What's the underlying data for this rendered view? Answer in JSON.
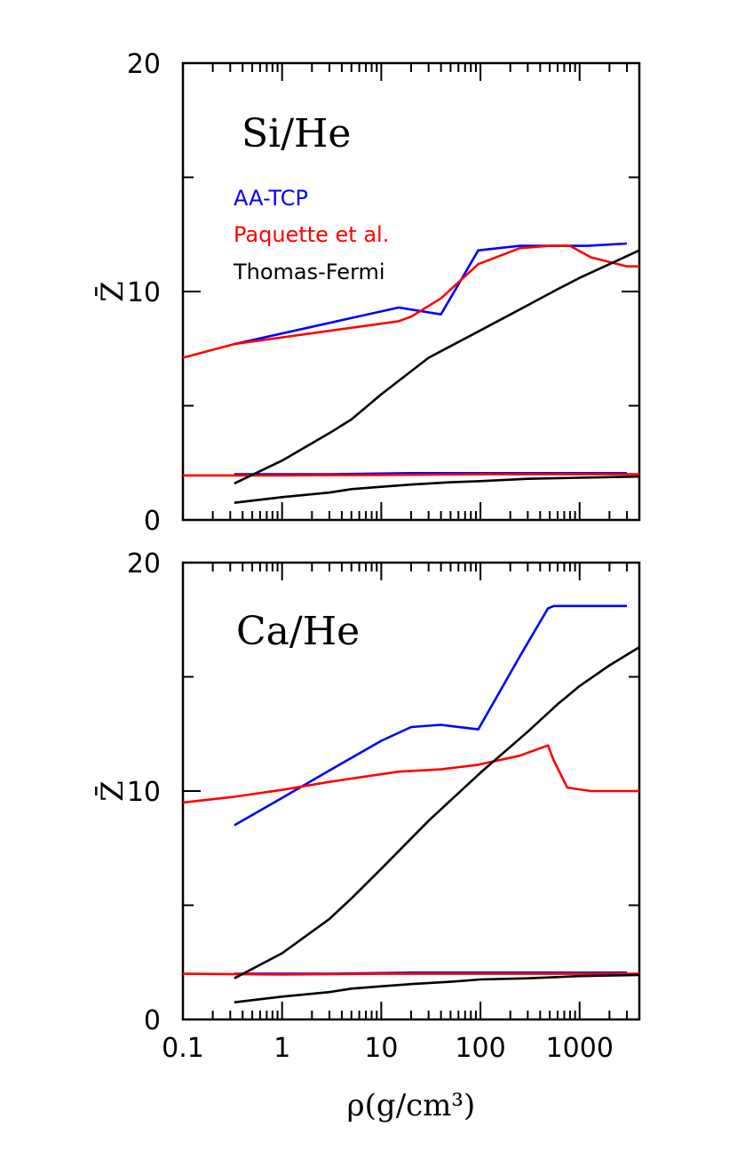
{
  "colors": {
    "AA-TCP": "#0000ff",
    "Paquette et al.": "#ff0000",
    "Thomas-Fermi": "#000000"
  },
  "chart_data": [
    {
      "type": "line",
      "title": "Si/He",
      "xlabel": "",
      "ylabel": "Z̄",
      "xscale": "log",
      "xlim": [
        0.1,
        4000
      ],
      "ylim": [
        0,
        20
      ],
      "x_ticks": [
        0.1,
        1,
        10,
        100,
        1000
      ],
      "x_tick_labels": [
        "0.1",
        "1",
        "10",
        "100",
        "1000"
      ],
      "x_tick_labels_visible": false,
      "y_ticks": [
        0,
        10,
        20
      ],
      "y_tick_labels": [
        "0",
        "10",
        "20"
      ],
      "legend": {
        "position": "upper-left",
        "entries": [
          "AA-TCP",
          "Paquette et al.",
          "Thomas-Fermi"
        ]
      },
      "series": [
        {
          "name": "AA-TCP",
          "x": [
            0.33,
            15,
            40,
            95,
            250,
            500,
            1200,
            3000
          ],
          "y": [
            7.7,
            9.3,
            9.0,
            11.8,
            12.0,
            12.0,
            12.0,
            12.1
          ]
        },
        {
          "name": "AA-TCP",
          "x": [
            0.33,
            3,
            20,
            100,
            3000
          ],
          "y": [
            2.0,
            2.0,
            2.05,
            2.05,
            2.05
          ]
        },
        {
          "name": "Paquette et al.",
          "x": [
            0.1,
            0.33,
            15,
            20,
            40,
            95,
            250,
            500,
            800,
            1300,
            3000,
            4000
          ],
          "y": [
            7.1,
            7.7,
            8.7,
            8.9,
            9.7,
            11.2,
            11.9,
            12.0,
            12.0,
            11.5,
            11.1,
            11.1
          ]
        },
        {
          "name": "Paquette et al.",
          "x": [
            0.1,
            1,
            10,
            100,
            1000,
            4000
          ],
          "y": [
            1.95,
            1.95,
            1.97,
            2.0,
            2.0,
            2.0
          ]
        },
        {
          "name": "Thomas-Fermi",
          "x": [
            0.33,
            1,
            3,
            5,
            10,
            30,
            100,
            300,
            600,
            1000,
            2000,
            4000
          ],
          "y": [
            1.6,
            2.6,
            3.8,
            4.4,
            5.5,
            7.1,
            8.3,
            9.4,
            10.1,
            10.6,
            11.2,
            11.8
          ]
        },
        {
          "name": "Thomas-Fermi",
          "x": [
            0.33,
            1,
            3,
            5,
            10,
            20,
            50,
            100,
            300,
            1000,
            4000
          ],
          "y": [
            0.75,
            1.0,
            1.2,
            1.35,
            1.45,
            1.55,
            1.65,
            1.7,
            1.8,
            1.85,
            1.9
          ]
        }
      ]
    },
    {
      "type": "line",
      "title": "Ca/He",
      "xlabel": "ρ(g/cm³)",
      "ylabel": "Z̄",
      "xscale": "log",
      "xlim": [
        0.1,
        4000
      ],
      "ylim": [
        0,
        20
      ],
      "x_ticks": [
        0.1,
        1,
        10,
        100,
        1000
      ],
      "x_tick_labels": [
        "0.1",
        "1",
        "10",
        "100",
        "1000"
      ],
      "x_tick_labels_visible": true,
      "y_ticks": [
        0,
        10,
        20
      ],
      "y_tick_labels": [
        "0",
        "10",
        "20"
      ],
      "series": [
        {
          "name": "AA-TCP",
          "x": [
            0.33,
            1,
            3,
            10,
            20,
            40,
            95,
            250,
            480,
            550,
            1000,
            3000
          ],
          "y": [
            8.5,
            9.7,
            10.9,
            12.2,
            12.8,
            12.9,
            12.7,
            15.9,
            18.0,
            18.1,
            18.1,
            18.1
          ]
        },
        {
          "name": "AA-TCP",
          "x": [
            0.33,
            3,
            20,
            100,
            1000,
            3000
          ],
          "y": [
            2.0,
            2.0,
            2.05,
            2.05,
            2.05,
            2.05
          ]
        },
        {
          "name": "Paquette et al.",
          "x": [
            0.1,
            0.33,
            1,
            3,
            15,
            40,
            95,
            250,
            480,
            540,
            750,
            1300,
            3000,
            4000
          ],
          "y": [
            9.5,
            9.75,
            10.05,
            10.4,
            10.85,
            10.95,
            11.15,
            11.55,
            12.0,
            11.4,
            10.15,
            10.0,
            10.0,
            10.0
          ]
        },
        {
          "name": "Paquette et al.",
          "x": [
            0.1,
            1,
            10,
            100,
            1000,
            4000
          ],
          "y": [
            2.0,
            1.97,
            2.0,
            2.0,
            2.0,
            2.0
          ]
        },
        {
          "name": "Thomas-Fermi",
          "x": [
            0.33,
            1,
            3,
            5,
            10,
            30,
            100,
            300,
            600,
            1000,
            2000,
            4000
          ],
          "y": [
            1.8,
            2.9,
            4.4,
            5.3,
            6.6,
            8.7,
            10.8,
            12.6,
            13.8,
            14.6,
            15.5,
            16.3
          ]
        },
        {
          "name": "Thomas-Fermi",
          "x": [
            0.33,
            1,
            3,
            5,
            10,
            20,
            50,
            100,
            300,
            1000,
            4000
          ],
          "y": [
            0.75,
            1.0,
            1.2,
            1.35,
            1.45,
            1.55,
            1.65,
            1.75,
            1.8,
            1.9,
            1.95
          ]
        }
      ]
    }
  ]
}
